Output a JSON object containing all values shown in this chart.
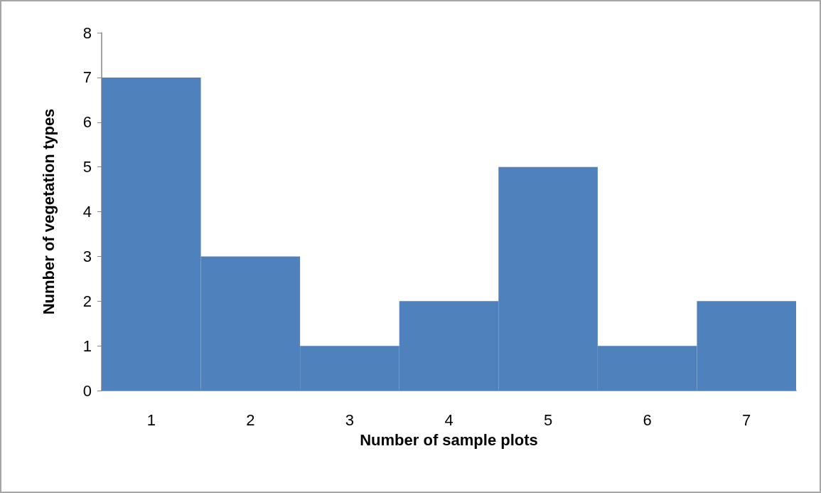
{
  "chart_data": {
    "type": "bar",
    "xlabel": "Number of sample plots",
    "ylabel": "Number of vegetation types",
    "categories": [
      "1",
      "2",
      "3",
      "4",
      "5",
      "6",
      "7"
    ],
    "values": [
      7,
      3,
      1,
      2,
      5,
      1,
      2
    ],
    "color": "#4f81bd",
    "ylim": [
      0,
      8
    ],
    "yticks": [
      0,
      1,
      2,
      3,
      4,
      5,
      6,
      7,
      8
    ],
    "grid": false
  }
}
